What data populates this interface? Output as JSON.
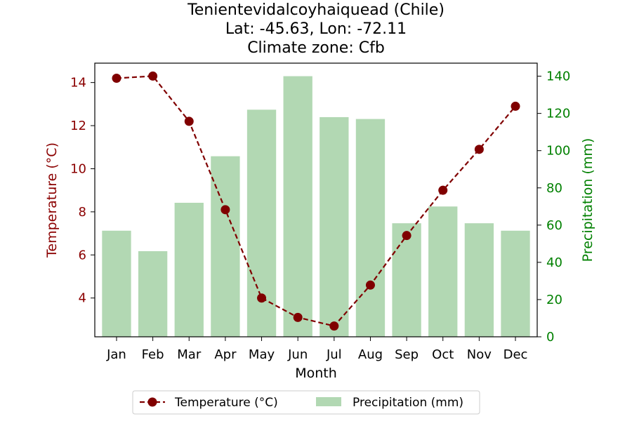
{
  "chart_data": {
    "type": "bar",
    "title_lines": [
      "Tenientevidalcoyhaiquead (Chile)",
      "Lat: -45.63, Lon: -72.11",
      "Climate zone: Cfb"
    ],
    "xlabel": "Month",
    "categories": [
      "Jan",
      "Feb",
      "Mar",
      "Apr",
      "May",
      "Jun",
      "Jul",
      "Aug",
      "Sep",
      "Oct",
      "Nov",
      "Dec"
    ],
    "series": [
      {
        "name": "Temperature (°C)",
        "type": "line",
        "axis": "left",
        "color": "#800000",
        "line_style": "dashed",
        "marker": "circle",
        "values": [
          14.2,
          14.3,
          12.2,
          8.1,
          4.0,
          3.1,
          2.7,
          4.6,
          6.9,
          9.0,
          10.9,
          12.9
        ]
      },
      {
        "name": "Precipitation (mm)",
        "type": "bar",
        "axis": "right",
        "color": "#b2d8b3",
        "values": [
          57,
          46,
          72,
          97,
          122,
          140,
          118,
          117,
          61,
          70,
          61,
          57
        ]
      }
    ],
    "y_left": {
      "label": "Temperature (°C)",
      "color": "#8b0000",
      "range": [
        2.2,
        14.9
      ],
      "ticks": [
        4,
        6,
        8,
        10,
        12,
        14
      ]
    },
    "y_right": {
      "label": "Precipitation (mm)",
      "color": "#008000",
      "range": [
        0,
        147
      ],
      "ticks": [
        0,
        20,
        40,
        60,
        80,
        100,
        120,
        140
      ]
    },
    "legend": {
      "placement": "bottom-center",
      "entries": [
        "Temperature (°C)",
        "Precipitation (mm)"
      ]
    },
    "grid": false
  }
}
